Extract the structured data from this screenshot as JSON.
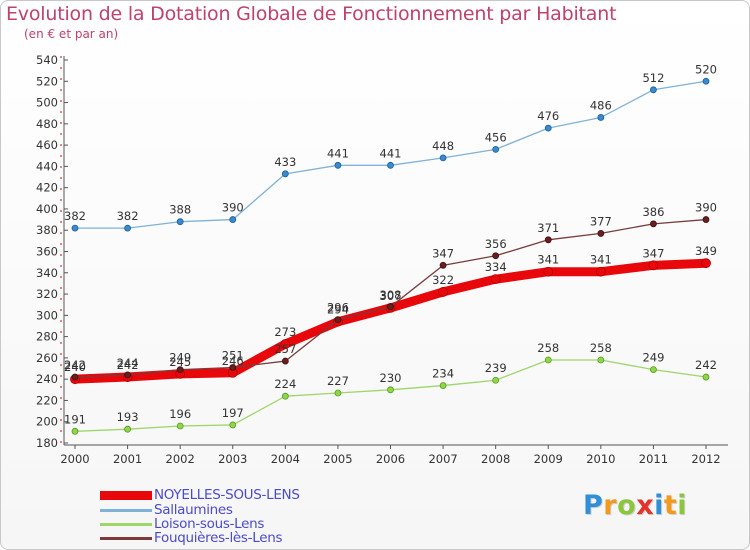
{
  "chart_data": {
    "type": "line",
    "title": "Evolution de la Dotation Globale de Fonctionnement par Habitant",
    "subtitle": "(en € et par an)",
    "xlabel": "",
    "ylabel": "",
    "categories": [
      "2000",
      "2001",
      "2002",
      "2003",
      "2004",
      "2005",
      "2006",
      "2007",
      "2008",
      "2009",
      "2010",
      "2011",
      "2012"
    ],
    "ylim": [
      180,
      540
    ],
    "yticks": [
      180,
      200,
      220,
      240,
      260,
      280,
      300,
      320,
      340,
      360,
      380,
      400,
      420,
      440,
      460,
      480,
      500,
      520,
      540
    ],
    "grid": false,
    "legend_position": "bottom-left",
    "series": [
      {
        "name": "NOYELLES-SOUS-LENS",
        "color": "#e8080c",
        "values": [
          240,
          242,
          245,
          246,
          273,
          294,
          307,
          322,
          334,
          341,
          341,
          347,
          349
        ]
      },
      {
        "name": "Sallaumines",
        "color": "#7fb2d8",
        "values": [
          382,
          382,
          388,
          390,
          433,
          441,
          441,
          448,
          456,
          476,
          486,
          512,
          520
        ]
      },
      {
        "name": "Loison-sous-Lens",
        "color": "#9ed66a",
        "values": [
          191,
          193,
          196,
          197,
          224,
          227,
          230,
          234,
          239,
          258,
          258,
          249,
          242
        ]
      },
      {
        "name": "Fouquières-lès-Lens",
        "color": "#7a3b3b",
        "values": [
          242,
          244,
          249,
          251,
          257,
          296,
          308,
          347,
          356,
          371,
          377,
          386,
          390
        ]
      }
    ]
  },
  "logo": {
    "letters": [
      "P",
      "r",
      "o",
      "x",
      "i",
      "t",
      "i"
    ],
    "colors": [
      "#2f8fd8",
      "#f39a1e",
      "#8cc63e",
      "#e6332a",
      "#2f8fd8",
      "#f39a1e",
      "#8cc63e"
    ]
  }
}
